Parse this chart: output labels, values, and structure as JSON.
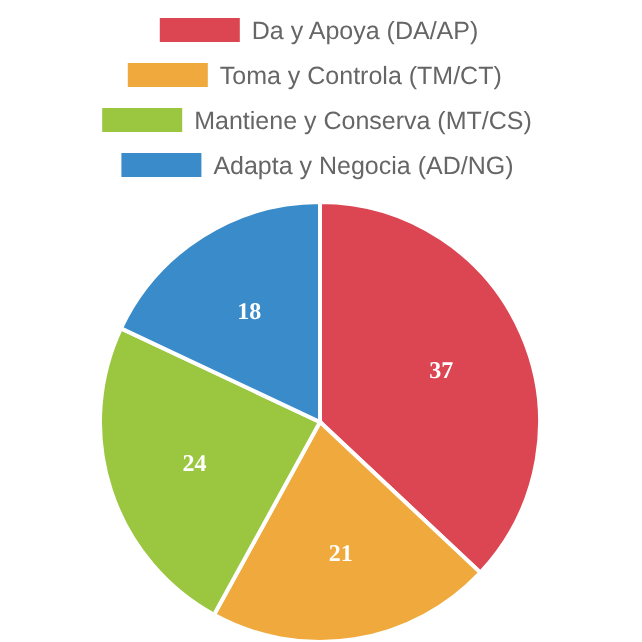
{
  "chart_data": {
    "type": "pie",
    "categories": [
      "Da y Apoya (DA/AP)",
      "Toma y Controla (TM/CT)",
      "Mantiene y Conserva (MT/CS)",
      "Adapta y Negocia (AD/NG)"
    ],
    "values": [
      37,
      21,
      24,
      18
    ],
    "colors": [
      "#dc4653",
      "#f0a93c",
      "#9bc640",
      "#3a8bc9"
    ],
    "data_labels": true,
    "legend": "top"
  }
}
